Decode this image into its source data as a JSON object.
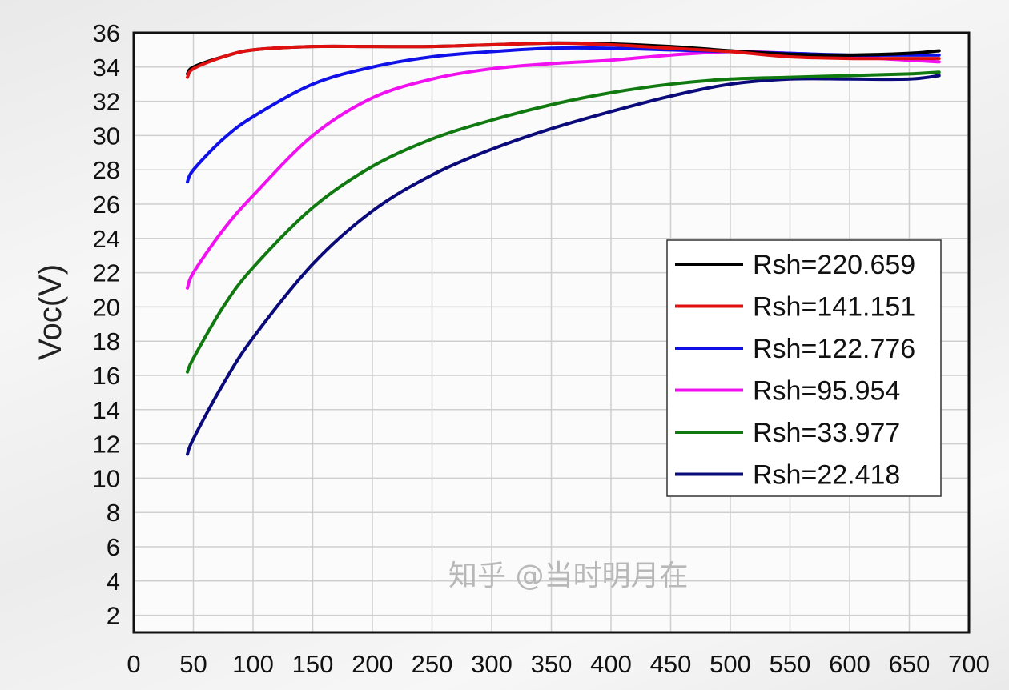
{
  "chart_data": {
    "type": "line",
    "title": "",
    "xlabel": "",
    "ylabel": "Voc(V)",
    "xlim": [
      0,
      700
    ],
    "ylim": [
      1,
      36
    ],
    "grid": true,
    "legend_position": "center-right",
    "x_ticks": [
      0,
      50,
      100,
      150,
      200,
      250,
      300,
      350,
      400,
      450,
      500,
      550,
      600,
      650,
      700
    ],
    "y_ticks": [
      2,
      4,
      6,
      8,
      10,
      12,
      14,
      16,
      18,
      20,
      22,
      24,
      26,
      28,
      30,
      32,
      34,
      36
    ],
    "x": [
      45,
      50,
      75,
      100,
      150,
      200,
      250,
      300,
      350,
      400,
      450,
      500,
      550,
      600,
      650,
      675
    ],
    "series": [
      {
        "name": "Rsh=220.659",
        "color": "#000000",
        "values": [
          33.6,
          34.0,
          34.6,
          35.0,
          35.2,
          35.2,
          35.2,
          35.3,
          35.4,
          35.35,
          35.2,
          34.95,
          34.75,
          34.7,
          34.8,
          34.95
        ]
      },
      {
        "name": "Rsh=141.151",
        "color": "#e01010",
        "values": [
          33.4,
          33.9,
          34.6,
          35.0,
          35.2,
          35.2,
          35.2,
          35.3,
          35.4,
          35.3,
          35.1,
          34.9,
          34.6,
          34.5,
          34.5,
          34.5
        ]
      },
      {
        "name": "Rsh=122.776",
        "color": "#1010e8",
        "values": [
          27.3,
          28.0,
          29.8,
          31.1,
          33.0,
          34.0,
          34.6,
          34.9,
          35.1,
          35.1,
          35.0,
          34.9,
          34.8,
          34.7,
          34.7,
          34.7
        ]
      },
      {
        "name": "Rsh=95.954",
        "color": "#f010f0",
        "values": [
          21.1,
          22.0,
          24.5,
          26.5,
          30.0,
          32.2,
          33.3,
          33.9,
          34.2,
          34.4,
          34.7,
          34.9,
          34.8,
          34.6,
          34.4,
          34.3
        ]
      },
      {
        "name": "Rsh=33.977",
        "color": "#107a10",
        "values": [
          16.2,
          17.0,
          20.0,
          22.3,
          25.8,
          28.2,
          29.8,
          30.9,
          31.8,
          32.5,
          33.0,
          33.3,
          33.4,
          33.5,
          33.6,
          33.7
        ]
      },
      {
        "name": "Rsh=22.418",
        "color": "#0a0a7a",
        "values": [
          11.4,
          12.3,
          15.5,
          18.2,
          22.5,
          25.6,
          27.7,
          29.2,
          30.4,
          31.4,
          32.3,
          33.0,
          33.3,
          33.3,
          33.3,
          33.5
        ]
      }
    ]
  },
  "watermark": "知乎 @当时明月在"
}
